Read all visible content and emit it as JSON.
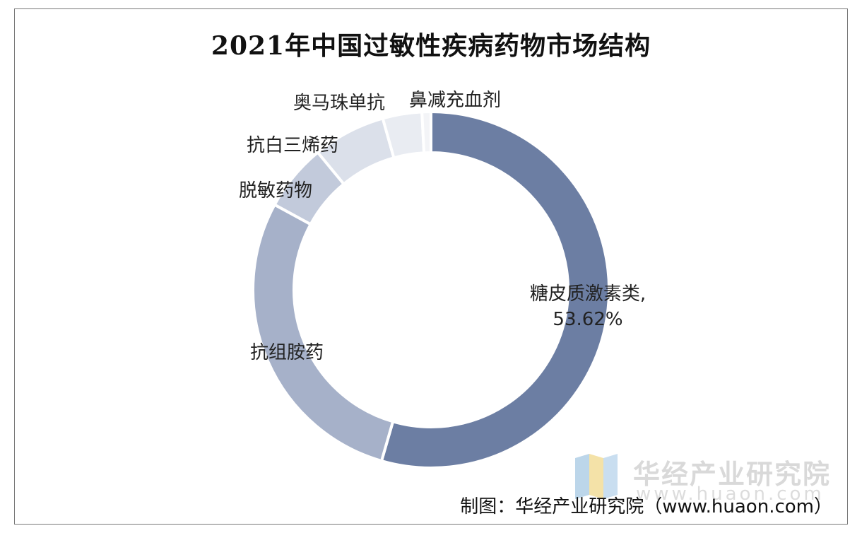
{
  "title": "2021年中国过敏性疾病药物市场结构",
  "source": "制图：华经产业研究院（www.huaon.com）",
  "watermark": {
    "name": "华经产业研究院",
    "url": "www.huaon.com"
  },
  "chart_data": {
    "type": "pie",
    "variant": "donut",
    "title": "2021年中国过敏性疾病药物市场结构",
    "slices": [
      {
        "name": "糖皮质激素类",
        "value": 53.62,
        "value_label": "53.62%",
        "color": "#6c7ea3"
      },
      {
        "name": "抗组胺药",
        "value": 28.0,
        "value_label": "",
        "color": "#a6b1c9"
      },
      {
        "name": "脱敏药物",
        "value": 6.0,
        "value_label": "",
        "color": "#c2cadb"
      },
      {
        "name": "抗白三烯药",
        "value": 6.5,
        "value_label": "",
        "color": "#dbe0ea"
      },
      {
        "name": "奥马珠单抗",
        "value": 3.5,
        "value_label": "",
        "color": "#e9ecf2"
      },
      {
        "name": "鼻减充血剂",
        "value": 0.8,
        "value_label": "",
        "color": "#f3f4f7"
      }
    ]
  }
}
